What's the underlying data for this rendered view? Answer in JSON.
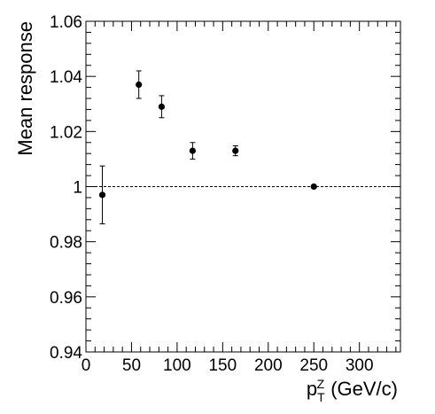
{
  "chart_data": {
    "type": "scatter",
    "xlabel": {
      "base": "p",
      "subscript": "T",
      "superscript": "Z",
      "unit": "(GeV/c)"
    },
    "ylabel": "Mean response",
    "xlim": [
      0,
      345
    ],
    "ylim": [
      0.94,
      1.06
    ],
    "x_ticks": [
      0,
      50,
      100,
      150,
      200,
      250,
      300
    ],
    "x_tick_labels": [
      "0",
      "50",
      "100",
      "150",
      "200",
      "250",
      "300"
    ],
    "y_ticks": [
      0.94,
      0.96,
      0.98,
      1.0,
      1.02,
      1.04,
      1.06
    ],
    "y_tick_labels": [
      "0.94",
      "0.96",
      "0.98",
      "1",
      "1.02",
      "1.04",
      "1.06"
    ],
    "reference_line": {
      "y": 1.0,
      "style": "dashed"
    },
    "grid": false,
    "legend": "none",
    "marker_color": "#000000",
    "points": [
      {
        "x": 18,
        "y": 0.997,
        "yerr": 0.0105
      },
      {
        "x": 58,
        "y": 1.037,
        "yerr": 0.005
      },
      {
        "x": 83,
        "y": 1.029,
        "yerr": 0.004
      },
      {
        "x": 117,
        "y": 1.013,
        "yerr": 0.003
      },
      {
        "x": 164,
        "y": 1.013,
        "yerr": 0.0018
      },
      {
        "x": 250,
        "y": 1.0,
        "yerr": 0.0005
      }
    ]
  }
}
